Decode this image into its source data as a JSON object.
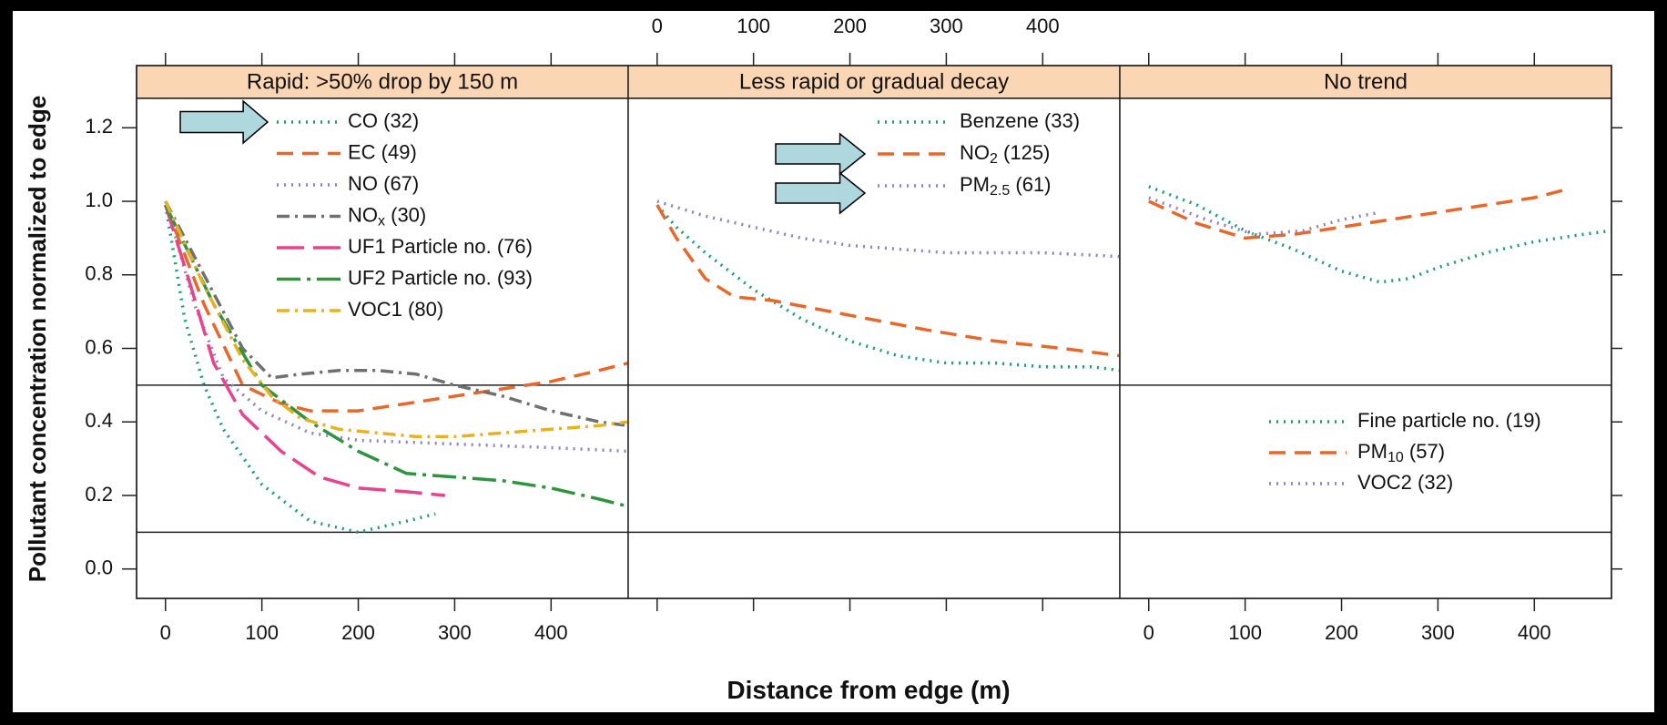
{
  "chart_data": {
    "type": "line",
    "ylabel": "Pollutant concentration normalized to edge",
    "xlabel": "Distance from edge (m)",
    "ylim": [
      -0.08,
      1.28
    ],
    "y_ticks": [
      "0.0",
      "0.2",
      "0.4",
      "0.6",
      "0.8",
      "1.0",
      "1.2"
    ],
    "x_ticks": [
      "0",
      "100",
      "200",
      "300",
      "400"
    ],
    "xlim": [
      -30,
      480
    ],
    "reference_lines": [
      0.1,
      0.5
    ],
    "arrow_color": "#aed8de",
    "panels": [
      {
        "title": "Rapid: >50% drop by 150 m",
        "series": [
          {
            "name": "CO (32)",
            "style": "dotted",
            "color": "#1a9e70",
            "x": [
              0,
              20,
              40,
              60,
              100,
              150,
              200,
              250,
              280
            ],
            "y": [
              0.99,
              0.68,
              0.5,
              0.38,
              0.23,
              0.13,
              0.1,
              0.13,
              0.15
            ]
          },
          {
            "name": "EC (49)",
            "style": "dashed",
            "color": "#e8672a",
            "x": [
              0,
              40,
              80,
              120,
              150,
              200,
              250,
              300,
              350,
              400,
              450,
              480
            ],
            "y": [
              0.99,
              0.72,
              0.5,
              0.45,
              0.43,
              0.43,
              0.45,
              0.47,
              0.49,
              0.51,
              0.54,
              0.56
            ]
          },
          {
            "name": "NO (67)",
            "style": "dotted",
            "color": "#8d82c4",
            "x": [
              0,
              30,
              60,
              100,
              150,
              200,
              300,
              400,
              480
            ],
            "y": [
              1.0,
              0.72,
              0.52,
              0.43,
              0.37,
              0.35,
              0.34,
              0.33,
              0.32
            ]
          },
          {
            "name": "NOX (30)",
            "style": "dashdot",
            "color": "#707070",
            "x": [
              0,
              40,
              80,
              110,
              140,
              180,
              220,
              260,
              300,
              350,
              400,
              450,
              480
            ],
            "y": [
              1.0,
              0.8,
              0.6,
              0.52,
              0.53,
              0.54,
              0.54,
              0.53,
              0.5,
              0.47,
              0.43,
              0.4,
              0.39
            ]
          },
          {
            "name": "UF1 Particle no. (76)",
            "style": "longdash",
            "color": "#e8438b",
            "x": [
              0,
              25,
              50,
              80,
              120,
              160,
              200,
              250,
              290
            ],
            "y": [
              0.99,
              0.78,
              0.56,
              0.42,
              0.32,
              0.25,
              0.22,
              0.21,
              0.2
            ]
          },
          {
            "name": "UF2 Particle no. (93)",
            "style": "longdashdot",
            "color": "#2e9440",
            "x": [
              0,
              50,
              100,
              150,
              200,
              250,
              300,
              350,
              400,
              450,
              480
            ],
            "y": [
              0.99,
              0.72,
              0.5,
              0.4,
              0.32,
              0.26,
              0.25,
              0.24,
              0.22,
              0.19,
              0.17
            ]
          },
          {
            "name": "VOC1 (80)",
            "style": "dashdot",
            "color": "#e6b224",
            "x": [
              0,
              40,
              80,
              110,
              140,
              180,
              220,
              260,
              300,
              350,
              400,
              450,
              480
            ],
            "y": [
              1.0,
              0.77,
              0.57,
              0.47,
              0.41,
              0.38,
              0.37,
              0.36,
              0.36,
              0.37,
              0.38,
              0.39,
              0.4
            ]
          }
        ]
      },
      {
        "title": "Less rapid or gradual decay",
        "series": [
          {
            "name": "Benzene (33)",
            "style": "dotted",
            "color": "#1a9e70",
            "x": [
              0,
              20,
              50,
              100,
              150,
              200,
              250,
              300,
              350,
              400,
              450,
              480
            ],
            "y": [
              0.99,
              0.93,
              0.86,
              0.76,
              0.68,
              0.62,
              0.58,
              0.56,
              0.56,
              0.55,
              0.55,
              0.54
            ]
          },
          {
            "name": "NO2 (125)",
            "style": "dashed",
            "color": "#e8672a",
            "x": [
              0,
              20,
              50,
              80,
              120,
              200,
              280,
              350,
              420,
              480
            ],
            "y": [
              0.99,
              0.9,
              0.79,
              0.74,
              0.73,
              0.69,
              0.65,
              0.62,
              0.6,
              0.58
            ]
          },
          {
            "name": "PM2.5 (61)",
            "style": "dotted",
            "color": "#8d82c4",
            "x": [
              0,
              50,
              100,
              150,
              200,
              250,
              300,
              350,
              400,
              480
            ],
            "y": [
              1.0,
              0.96,
              0.93,
              0.9,
              0.88,
              0.87,
              0.86,
              0.86,
              0.86,
              0.85
            ]
          }
        ]
      },
      {
        "title": "No trend",
        "series": [
          {
            "name": "Fine particle no. (19)",
            "style": "dotted",
            "color": "#1a9e70",
            "x": [
              0,
              50,
              100,
              150,
              200,
              240,
              270,
              300,
              350,
              400,
              450,
              480
            ],
            "y": [
              1.04,
              0.99,
              0.92,
              0.87,
              0.81,
              0.78,
              0.79,
              0.82,
              0.86,
              0.89,
              0.91,
              0.92
            ]
          },
          {
            "name": "PM10 (57)",
            "style": "dashed",
            "color": "#e8672a",
            "x": [
              0,
              50,
              100,
              150,
              200,
              250,
              300,
              350,
              400,
              430
            ],
            "y": [
              1.0,
              0.94,
              0.9,
              0.91,
              0.93,
              0.95,
              0.97,
              0.99,
              1.01,
              1.03
            ]
          },
          {
            "name": "VOC2 (32)",
            "style": "dotted",
            "color": "#8d82c4",
            "x": [
              0,
              60,
              110,
              160,
              200,
              240
            ],
            "y": [
              1.01,
              0.95,
              0.91,
              0.92,
              0.95,
              0.97
            ]
          }
        ]
      }
    ]
  }
}
